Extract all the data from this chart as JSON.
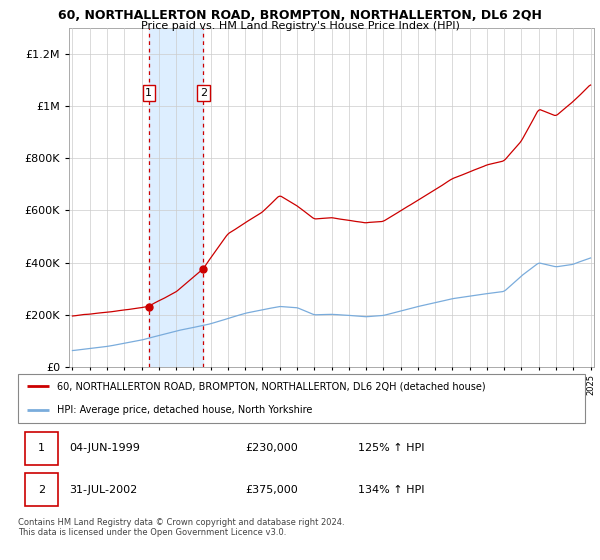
{
  "title": "60, NORTHALLERTON ROAD, BROMPTON, NORTHALLERTON, DL6 2QH",
  "subtitle": "Price paid vs. HM Land Registry's House Price Index (HPI)",
  "legend_line1": "60, NORTHALLERTON ROAD, BROMPTON, NORTHALLERTON, DL6 2QH (detached house)",
  "legend_line2": "HPI: Average price, detached house, North Yorkshire",
  "footer": "Contains HM Land Registry data © Crown copyright and database right 2024.\nThis data is licensed under the Open Government Licence v3.0.",
  "transaction1_date": "04-JUN-1999",
  "transaction1_price": "£230,000",
  "transaction1_hpi": "125% ↑ HPI",
  "transaction2_date": "31-JUL-2002",
  "transaction2_price": "£375,000",
  "transaction2_hpi": "134% ↑ HPI",
  "hpi_color": "#7aacdc",
  "price_color": "#cc0000",
  "background_color": "#ffffff",
  "grid_color": "#cccccc",
  "shaded_region_color": "#ddeeff",
  "ylim": [
    0,
    1300000
  ],
  "yticks": [
    0,
    200000,
    400000,
    600000,
    800000,
    1000000,
    1200000
  ],
  "x_start_year": 1995,
  "x_end_year": 2025,
  "transaction1_year": 1999.42,
  "transaction2_year": 2002.58,
  "transaction1_value": 230000,
  "transaction2_value": 375000
}
